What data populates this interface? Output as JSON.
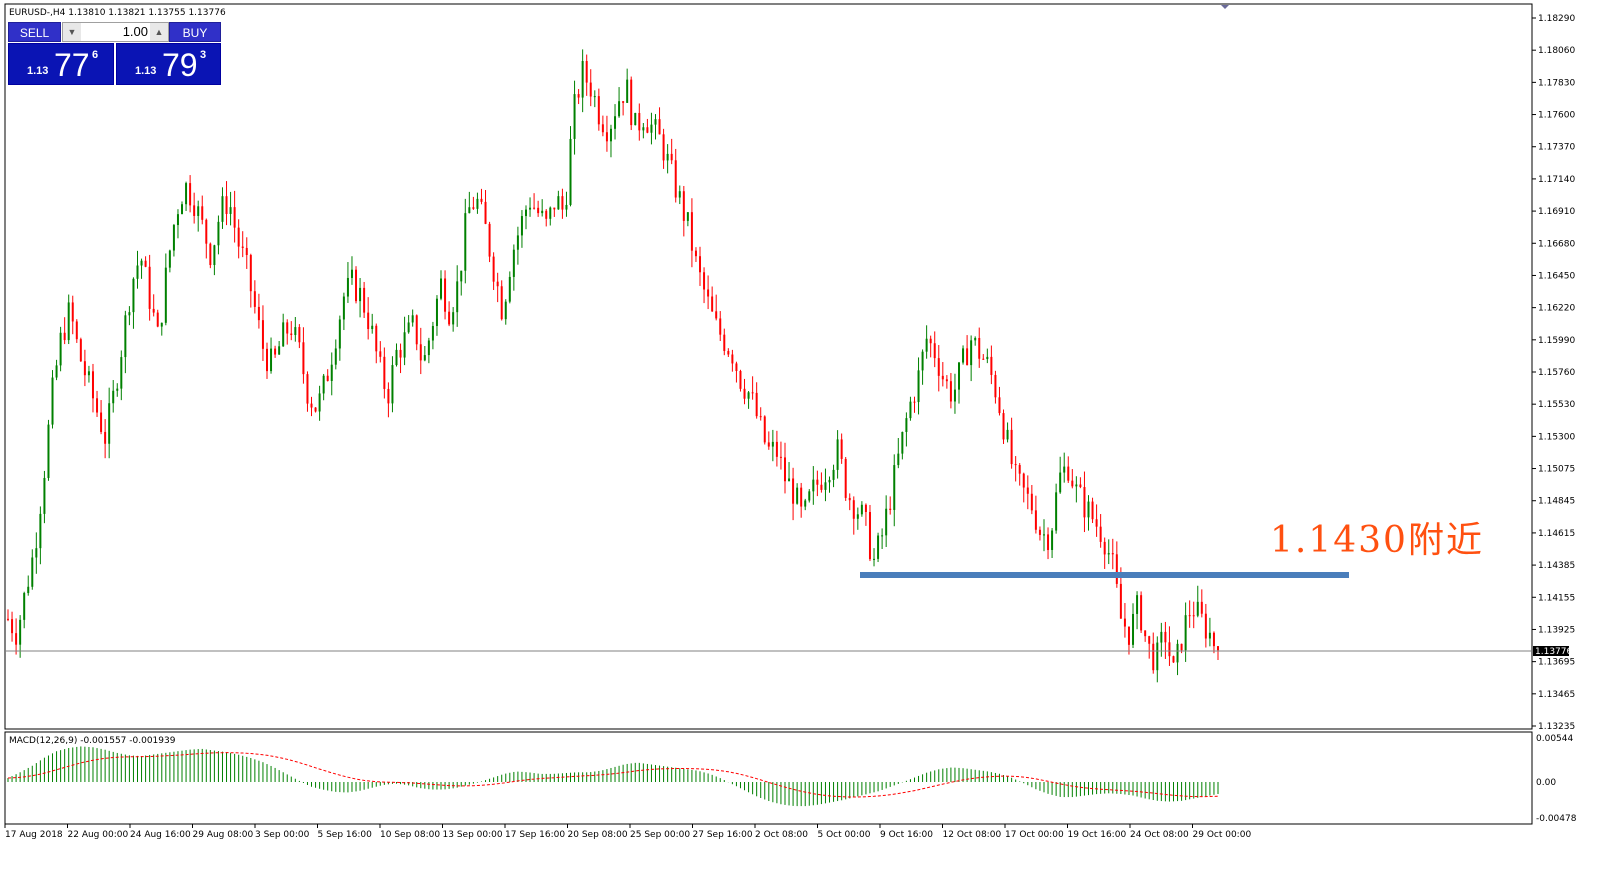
{
  "chart_header": "EURUSD-,H4  1.13810 1.13821 1.13755 1.13776",
  "trade_panel": {
    "sell_label": "SELL",
    "buy_label": "BUY",
    "lot": "1.00",
    "sell_small": "1.13",
    "sell_big": "77",
    "sell_sup": "6",
    "buy_small": "1.13",
    "buy_big": "79",
    "buy_sup": "3"
  },
  "annotation": {
    "text": "1.1430附近",
    "color": "#ff5010",
    "level": 1.143,
    "line_color": "#4a7ebb"
  },
  "price_axis": {
    "labels": [
      "1.18290",
      "1.18060",
      "1.17830",
      "1.17600",
      "1.17370",
      "1.17140",
      "1.16910",
      "1.16680",
      "1.16450",
      "1.16220",
      "1.15990",
      "1.15760",
      "1.15530",
      "1.15300",
      "1.15075",
      "1.14845",
      "1.14615",
      "1.14385",
      "1.14155",
      "1.13925",
      "1.13695",
      "1.13465",
      "1.13235"
    ],
    "current": "1.13776"
  },
  "time_axis": {
    "labels": [
      "17 Aug 2018",
      "22 Aug 00:00",
      "24 Aug 16:00",
      "29 Aug 08:00",
      "3 Sep 00:00",
      "5 Sep 16:00",
      "10 Sep 08:00",
      "13 Sep 00:00",
      "17 Sep 16:00",
      "20 Sep 08:00",
      "25 Sep 00:00",
      "27 Sep 16:00",
      "2 Oct 08:00",
      "5 Oct 00:00",
      "9 Oct 16:00",
      "12 Oct 08:00",
      "17 Oct 00:00",
      "19 Oct 16:00",
      "24 Oct 08:00",
      "29 Oct 00:00"
    ]
  },
  "macd": {
    "label": "MACD(12,26,9) -0.001557 -0.001939",
    "axis": [
      "0.00544",
      "0.00",
      "-0.00478"
    ]
  },
  "colors": {
    "bull": "#008000",
    "bear": "#ff0000",
    "signal": "#ff0000",
    "hist": "#008000"
  },
  "chart_data": {
    "type": "candlestick",
    "symbol": "EURUSD-",
    "timeframe": "H4",
    "ylim": [
      1.13235,
      1.1829
    ],
    "last": 1.13776,
    "closes_approx": [
      1.14,
      1.139,
      1.142,
      1.145,
      1.15,
      1.156,
      1.16,
      1.162,
      1.159,
      1.157,
      1.155,
      1.153,
      1.156,
      1.16,
      1.164,
      1.166,
      1.163,
      1.16,
      1.165,
      1.169,
      1.171,
      1.17,
      1.168,
      1.166,
      1.169,
      1.17,
      1.167,
      1.165,
      1.162,
      1.159,
      1.158,
      1.16,
      1.161,
      1.159,
      1.156,
      1.155,
      1.157,
      1.16,
      1.163,
      1.164,
      1.163,
      1.161,
      1.158,
      1.156,
      1.159,
      1.16,
      1.161,
      1.158,
      1.161,
      1.164,
      1.162,
      1.164,
      1.169,
      1.17,
      1.168,
      1.165,
      1.162,
      1.166,
      1.168,
      1.17,
      1.169,
      1.168,
      1.17,
      1.169,
      1.176,
      1.179,
      1.178,
      1.176,
      1.175,
      1.177,
      1.178,
      1.175,
      1.176,
      1.175,
      1.174,
      1.172,
      1.17,
      1.168,
      1.165,
      1.163,
      1.161,
      1.16,
      1.159,
      1.157,
      1.156,
      1.154,
      1.152,
      1.152,
      1.15,
      1.149,
      1.147,
      1.149,
      1.15,
      1.151,
      1.152,
      1.149,
      1.148,
      1.147,
      1.144,
      1.146,
      1.149,
      1.152,
      1.155,
      1.157,
      1.16,
      1.159,
      1.157,
      1.156,
      1.158,
      1.16,
      1.159,
      1.158,
      1.156,
      1.153,
      1.15,
      1.149,
      1.148,
      1.146,
      1.146,
      1.15,
      1.151,
      1.149,
      1.148,
      1.147,
      1.146,
      1.144,
      1.14,
      1.139,
      1.141,
      1.138,
      1.137,
      1.139,
      1.136,
      1.139,
      1.141,
      1.14,
      1.139,
      1.1378
    ],
    "macd_hist_approx": [
      0.0005,
      0.0012,
      0.002,
      0.003,
      0.0038,
      0.0042,
      0.0044,
      0.0043,
      0.004,
      0.0036,
      0.0033,
      0.0032,
      0.0034,
      0.0036,
      0.0038,
      0.004,
      0.0041,
      0.0039,
      0.0037,
      0.0034,
      0.003,
      0.0025,
      0.0018,
      0.001,
      0.0002,
      -0.0006,
      -0.001,
      -0.0013,
      -0.0014,
      -0.0012,
      -0.0008,
      -0.0004,
      -0.0002,
      -0.0004,
      -0.0008,
      -0.001,
      -0.001,
      -0.0008,
      -0.0004,
      0.0,
      0.0005,
      0.001,
      0.0013,
      0.0012,
      0.001,
      0.001,
      0.0011,
      0.0012,
      0.0012,
      0.0014,
      0.0018,
      0.0022,
      0.0024,
      0.0022,
      0.002,
      0.0018,
      0.0016,
      0.0014,
      0.001,
      0.0004,
      -0.0004,
      -0.0012,
      -0.002,
      -0.0026,
      -0.003,
      -0.0032,
      -0.0032,
      -0.003,
      -0.0027,
      -0.0024,
      -0.002,
      -0.0016,
      -0.0012,
      -0.0006,
      0.0,
      0.0006,
      0.0012,
      0.0016,
      0.0018,
      0.0017,
      0.0015,
      0.0013,
      0.001,
      0.0005,
      -0.0002,
      -0.001,
      -0.0016,
      -0.002,
      -0.002,
      -0.0018,
      -0.0016,
      -0.0015,
      -0.0016,
      -0.0018,
      -0.0022,
      -0.0025,
      -0.0026,
      -0.0025,
      -0.0022,
      -0.0019,
      -0.0016
    ]
  }
}
